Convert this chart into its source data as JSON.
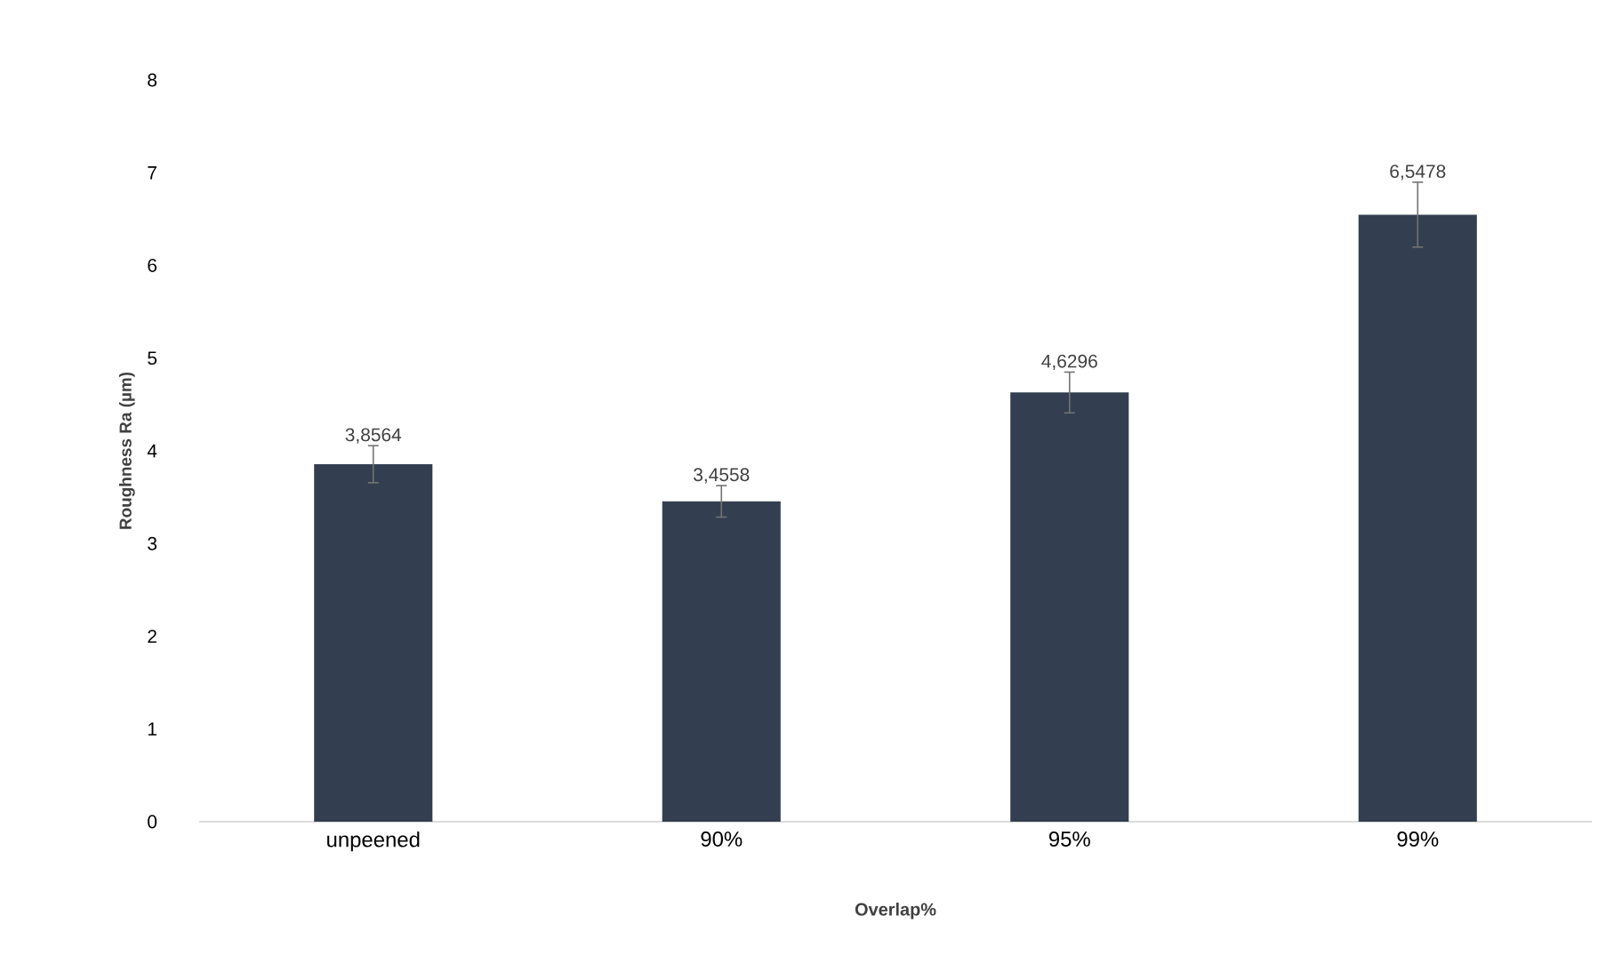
{
  "chart_data": {
    "type": "bar",
    "xlabel": "Overlap%",
    "ylabel": "Roughness  Ra (µm)",
    "categories": [
      "unpeened",
      "90%",
      "95%",
      "99%"
    ],
    "values": [
      3.8564,
      3.4558,
      4.6296,
      6.5478
    ],
    "errors": [
      0.2,
      0.17,
      0.22,
      0.35
    ],
    "value_labels": [
      "3,8564",
      "3,4558",
      "4,6296",
      "6,5478"
    ],
    "color": "#333f50",
    "ylim": [
      0,
      8
    ],
    "yticks": [
      0,
      1,
      2,
      3,
      4,
      5,
      6,
      7,
      8
    ]
  }
}
